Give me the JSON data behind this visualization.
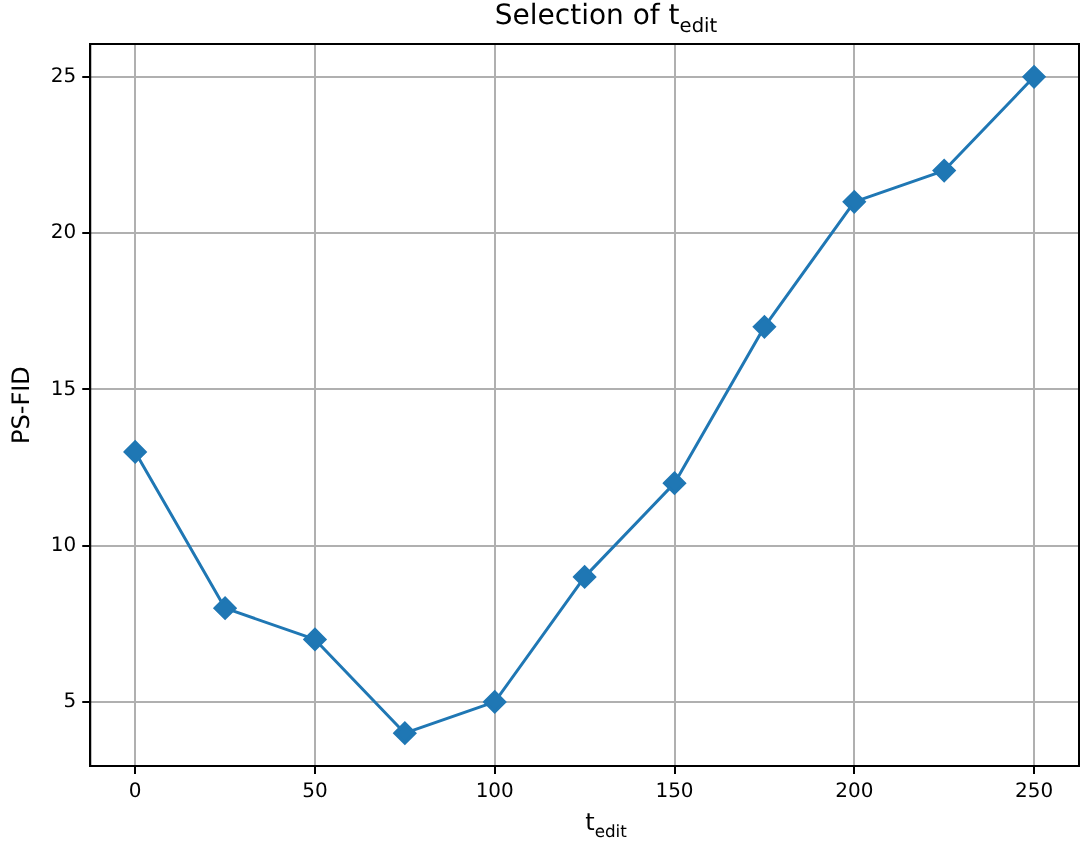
{
  "chart_data": {
    "type": "line",
    "title": "Selection of t$_{edit}$",
    "xlabel": "t$_{edit}$",
    "ylabel": "PS-FID",
    "x": [
      0,
      25,
      50,
      75,
      100,
      125,
      150,
      175,
      200,
      225,
      250
    ],
    "series": [
      {
        "color": "#1f77b4",
        "values": [
          13,
          8,
          7,
          4,
          5,
          9,
          12,
          17,
          21,
          22,
          25
        ]
      }
    ],
    "xlim": [
      -12.5,
      262.5
    ],
    "xticks": [
      0,
      50,
      100,
      150,
      200,
      250
    ],
    "ylim": [
      2.95,
      26.05
    ],
    "yticks": [
      5,
      10,
      15,
      20,
      25
    ],
    "grid": true,
    "legend": false,
    "marker": "diamond",
    "line_style": "solid"
  }
}
